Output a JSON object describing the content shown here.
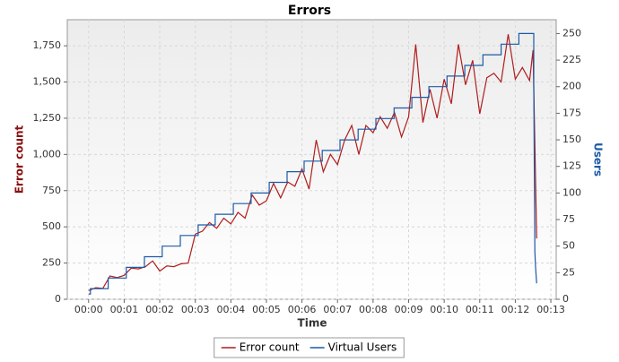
{
  "chart_data": {
    "type": "line",
    "title": "Errors",
    "x_label": "Time",
    "y_label": "Error count",
    "y2_label": "Users",
    "xlim": [
      -0.6,
      13.15
    ],
    "xticks": [
      {
        "value": 0,
        "label": "00:00"
      },
      {
        "value": 1,
        "label": "00:01"
      },
      {
        "value": 2,
        "label": "00:02"
      },
      {
        "value": 3,
        "label": "00:03"
      },
      {
        "value": 4,
        "label": "00:04"
      },
      {
        "value": 5,
        "label": "00:05"
      },
      {
        "value": 6,
        "label": "00:06"
      },
      {
        "value": 7,
        "label": "00:07"
      },
      {
        "value": 8,
        "label": "00:08"
      },
      {
        "value": 9,
        "label": "00:09"
      },
      {
        "value": 10,
        "label": "00:10"
      },
      {
        "value": 11,
        "label": "00:11"
      },
      {
        "value": 12,
        "label": "00:12"
      },
      {
        "value": 13,
        "label": "00:13"
      }
    ],
    "ylim": [
      0,
      1930
    ],
    "yticks": [
      0,
      250,
      500,
      750,
      {
        "value": 1000,
        "label": "1,000"
      },
      {
        "value": 1250,
        "label": "1,250"
      },
      {
        "value": 1500,
        "label": "1,500"
      },
      {
        "value": 1750,
        "label": "1,750"
      }
    ],
    "y2lim": [
      0,
      263
    ],
    "y2ticks": [
      0,
      25,
      50,
      75,
      100,
      125,
      150,
      175,
      200,
      225,
      250
    ],
    "grid": true,
    "legend": "bottom",
    "series": [
      {
        "name": "Error count",
        "color": "#b01c1c",
        "axis": "y",
        "x": [
          0,
          0.2,
          0.4,
          0.6,
          0.8,
          1.0,
          1.2,
          1.4,
          1.6,
          1.8,
          2.0,
          2.2,
          2.4,
          2.6,
          2.8,
          3.0,
          3.2,
          3.4,
          3.6,
          3.8,
          4.0,
          4.2,
          4.4,
          4.6,
          4.8,
          5.0,
          5.2,
          5.4,
          5.6,
          5.8,
          6.0,
          6.2,
          6.4,
          6.6,
          6.8,
          7.0,
          7.2,
          7.4,
          7.6,
          7.8,
          8.0,
          8.2,
          8.4,
          8.6,
          8.8,
          9.0,
          9.2,
          9.4,
          9.6,
          9.8,
          10.0,
          10.2,
          10.4,
          10.6,
          10.8,
          11.0,
          11.2,
          11.4,
          11.6,
          11.8,
          12.0,
          12.2,
          12.4,
          12.5,
          12.6
        ],
        "values": [
          60,
          80,
          75,
          160,
          150,
          165,
          215,
          210,
          225,
          265,
          195,
          230,
          225,
          245,
          250,
          450,
          470,
          530,
          490,
          560,
          520,
          600,
          560,
          720,
          650,
          680,
          800,
          700,
          810,
          780,
          900,
          760,
          1100,
          880,
          1000,
          930,
          1100,
          1200,
          1000,
          1200,
          1150,
          1260,
          1180,
          1290,
          1120,
          1260,
          1760,
          1220,
          1450,
          1250,
          1520,
          1350,
          1760,
          1480,
          1650,
          1280,
          1530,
          1560,
          1500,
          1830,
          1520,
          1600,
          1510,
          1720,
          420
        ]
      },
      {
        "name": "Virtual Users",
        "color": "#1c5aa6",
        "axis": "y2",
        "x": [
          0,
          0.05,
          0.05,
          0.55,
          0.55,
          1.06,
          1.06,
          1.57,
          1.57,
          2.07,
          2.07,
          2.58,
          2.58,
          3.08,
          3.08,
          3.56,
          3.56,
          4.07,
          4.07,
          4.57,
          4.57,
          5.08,
          5.08,
          5.58,
          5.58,
          6.06,
          6.06,
          6.57,
          6.57,
          7.07,
          7.07,
          7.58,
          7.58,
          8.08,
          8.08,
          8.59,
          8.59,
          9.09,
          9.09,
          9.57,
          9.57,
          10.08,
          10.08,
          10.58,
          10.58,
          11.09,
          11.09,
          11.6,
          11.6,
          12.1,
          12.1,
          12.52,
          12.52,
          12.55,
          12.57,
          12.6
        ],
        "values": [
          5,
          5,
          10,
          10,
          20,
          20,
          30,
          30,
          40,
          40,
          50,
          50,
          60,
          60,
          70,
          70,
          80,
          80,
          90,
          90,
          100,
          100,
          110,
          110,
          120,
          120,
          130,
          130,
          140,
          140,
          150,
          150,
          160,
          160,
          170,
          170,
          180,
          180,
          190,
          190,
          200,
          200,
          210,
          210,
          220,
          220,
          230,
          230,
          240,
          240,
          250,
          250,
          200,
          45,
          30,
          15
        ]
      }
    ]
  }
}
